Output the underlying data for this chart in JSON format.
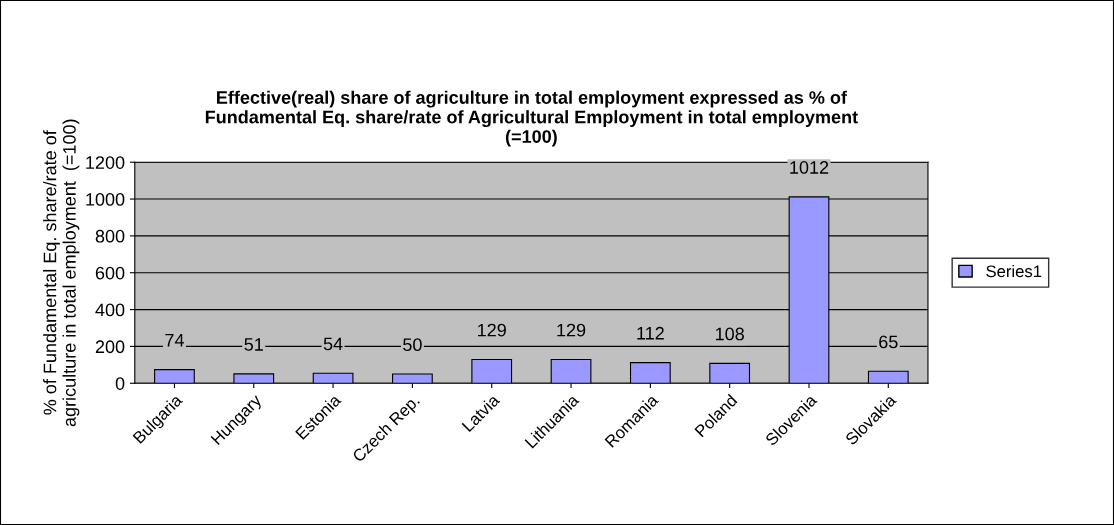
{
  "chart_data": {
    "type": "bar",
    "title": "Effective(real) share of agriculture in total employment expressed as % of\nFundamental Eq. share/rate of Agricultural Employment in total employment\n(=100)",
    "ylabel": "% of Fundamental Eq. share/rate of\nagriculture in total employment  (=100)",
    "categories": [
      "Bulgaria",
      "Hungary",
      "Estonia",
      "Czech Rep.",
      "Latvia",
      "Lithuania",
      "Romania",
      "Poland",
      "Slovenia",
      "Slovakia"
    ],
    "series": [
      {
        "name": "Series1",
        "color": "#9999ff",
        "values": [
          74,
          51,
          54,
          50,
          129,
          129,
          112,
          108,
          1012,
          65
        ]
      }
    ],
    "ylim": [
      0,
      1200
    ],
    "yticks": [
      0,
      200,
      400,
      600,
      800,
      1000,
      1200
    ],
    "grid": "y",
    "legend": "right",
    "data_labels": true
  }
}
